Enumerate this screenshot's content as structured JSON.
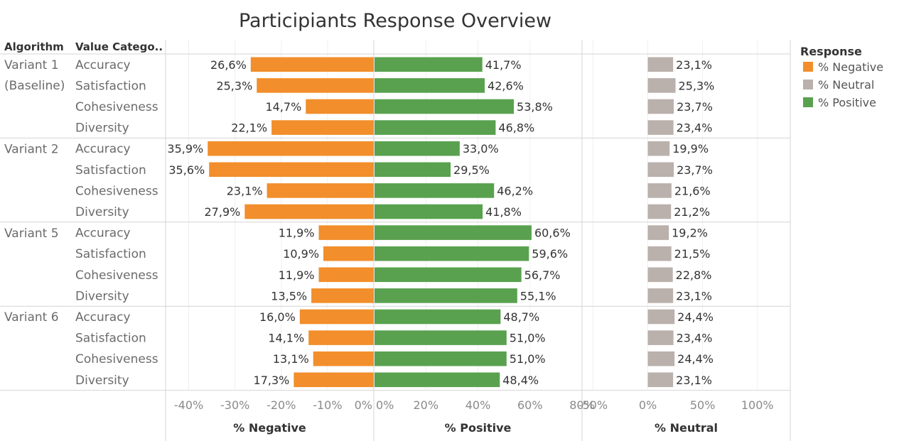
{
  "chart_data": {
    "type": "bar",
    "title": "Participiants Response Overview",
    "row_headers": [
      "Algorithm",
      "Value Catego.."
    ],
    "groups": [
      {
        "name": "Variant 1\n(Baseline)",
        "rows": [
          {
            "category": "Accuracy",
            "negative": 26.6,
            "positive": 41.7,
            "neutral": 23.1
          },
          {
            "category": "Satisfaction",
            "negative": 25.3,
            "positive": 42.6,
            "neutral": 25.3
          },
          {
            "category": "Cohesiveness",
            "negative": 14.7,
            "positive": 53.8,
            "neutral": 23.7
          },
          {
            "category": "Diversity",
            "negative": 22.1,
            "positive": 46.8,
            "neutral": 23.4
          }
        ]
      },
      {
        "name": "Variant 2",
        "rows": [
          {
            "category": "Accuracy",
            "negative": 35.9,
            "positive": 33.0,
            "neutral": 19.9
          },
          {
            "category": "Satisfaction",
            "negative": 35.6,
            "positive": 29.5,
            "neutral": 23.7
          },
          {
            "category": "Cohesiveness",
            "negative": 23.1,
            "positive": 46.2,
            "neutral": 21.6
          },
          {
            "category": "Diversity",
            "negative": 27.9,
            "positive": 41.8,
            "neutral": 21.2
          }
        ]
      },
      {
        "name": "Variant 5",
        "rows": [
          {
            "category": "Accuracy",
            "negative": 11.9,
            "positive": 60.6,
            "neutral": 19.2
          },
          {
            "category": "Satisfaction",
            "negative": 10.9,
            "positive": 59.6,
            "neutral": 21.5
          },
          {
            "category": "Cohesiveness",
            "negative": 11.9,
            "positive": 56.7,
            "neutral": 22.8
          },
          {
            "category": "Diversity",
            "negative": 13.5,
            "positive": 55.1,
            "neutral": 23.1
          }
        ]
      },
      {
        "name": "Variant 6",
        "rows": [
          {
            "category": "Accuracy",
            "negative": 16.0,
            "positive": 48.7,
            "neutral": 24.4
          },
          {
            "category": "Satisfaction",
            "negative": 14.1,
            "positive": 51.0,
            "neutral": 23.4
          },
          {
            "category": "Cohesiveness",
            "negative": 13.1,
            "positive": 51.0,
            "neutral": 24.4
          },
          {
            "category": "Diversity",
            "negative": 17.3,
            "positive": 48.4,
            "neutral": 23.1
          }
        ]
      }
    ],
    "panels": [
      {
        "key": "negative",
        "xlabel": "% Negative",
        "xlim": [
          -45,
          0
        ],
        "ticks": [
          -40,
          -30,
          -20,
          -10,
          0
        ],
        "tick_labels": [
          "-40%",
          "-30%",
          "-20%",
          "-10%",
          "0%"
        ],
        "color": "#f28e2b"
      },
      {
        "key": "positive",
        "xlabel": "% Positive",
        "xlim": [
          0,
          80
        ],
        "ticks": [
          0,
          20,
          40,
          60,
          80
        ],
        "tick_labels": [
          "0%",
          "20%",
          "40%",
          "60%",
          "80%"
        ],
        "color": "#59a14f"
      },
      {
        "key": "neutral",
        "xlabel": "% Neutral",
        "xlim": [
          -60,
          130
        ],
        "ticks": [
          -50,
          0,
          50,
          100
        ],
        "tick_labels": [
          "-50%",
          "0%",
          "50%",
          "100%"
        ],
        "color": "#bab0ac"
      }
    ],
    "legend": {
      "title": "Response",
      "placement": "right",
      "items": [
        {
          "label": "% Negative",
          "color": "#f28e2b"
        },
        {
          "label": "% Neutral",
          "color": "#bab0ac"
        },
        {
          "label": "% Positive",
          "color": "#59a14f"
        }
      ]
    },
    "value_format": "comma-decimal-percent"
  }
}
